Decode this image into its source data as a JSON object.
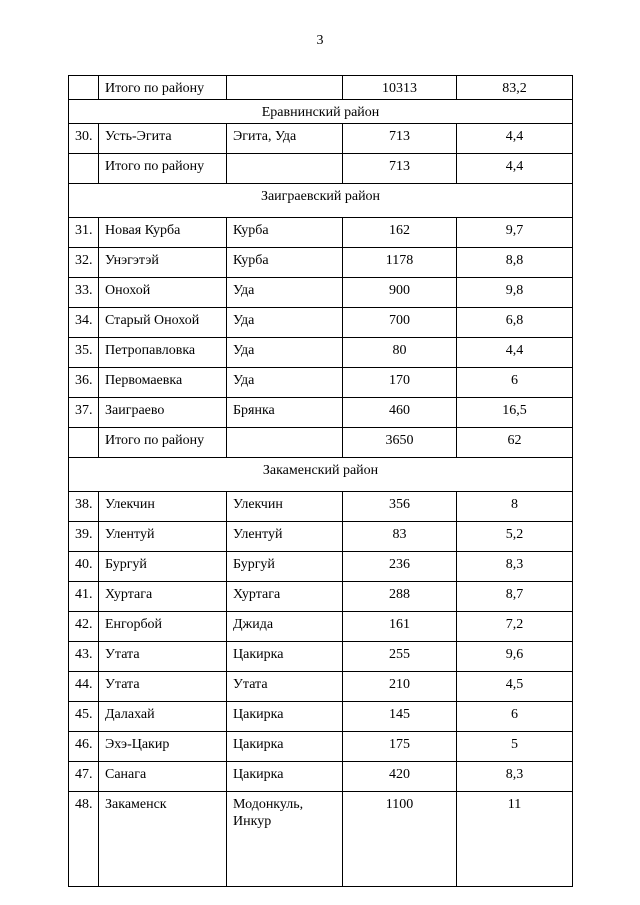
{
  "page": {
    "number": "3"
  },
  "table": {
    "rows": [
      {
        "type": "data",
        "size": "compact",
        "num": "",
        "name": "Итого по району",
        "river": "",
        "v1": "10313",
        "v2": "83,2"
      },
      {
        "type": "section",
        "size": "compact",
        "title": "Еравнинский район"
      },
      {
        "type": "data",
        "num": "30.",
        "name": "Усть-Эгита",
        "river": "Эгита, Уда",
        "v1": "713",
        "v2": "4,4"
      },
      {
        "type": "data",
        "num": "",
        "name": "Итого по району",
        "river": "",
        "v1": "713",
        "v2": "4,4"
      },
      {
        "type": "section",
        "size": "large",
        "title": "Заиграевский район"
      },
      {
        "type": "data",
        "num": "31.",
        "name": "Новая Курба",
        "river": "Курба",
        "v1": "162",
        "v2": "9,7"
      },
      {
        "type": "data",
        "num": "32.",
        "name": "Унэгэтэй",
        "river": "Курба",
        "v1": "1178",
        "v2": "8,8"
      },
      {
        "type": "data",
        "num": "33.",
        "name": "Онохой",
        "river": "Уда",
        "v1": "900",
        "v2": "9,8"
      },
      {
        "type": "data",
        "num": "34.",
        "name": "Старый Онохой",
        "river": "Уда",
        "v1": "700",
        "v2": "6,8"
      },
      {
        "type": "data",
        "num": "35.",
        "name": "Петропавловка",
        "river": "Уда",
        "v1": "80",
        "v2": "4,4"
      },
      {
        "type": "data",
        "num": "36.",
        "name": "Первомаевка",
        "river": "Уда",
        "v1": "170",
        "v2": "6"
      },
      {
        "type": "data",
        "num": "37.",
        "name": "Заиграево",
        "river": "Брянка",
        "v1": "460",
        "v2": "16,5"
      },
      {
        "type": "data",
        "num": "",
        "name": "Итого по району",
        "river": "",
        "v1": "3650",
        "v2": "62"
      },
      {
        "type": "section",
        "size": "large",
        "title": "Закаменский район"
      },
      {
        "type": "data",
        "num": "38.",
        "name": "Улекчин",
        "river": "Улекчин",
        "v1": "356",
        "v2": "8"
      },
      {
        "type": "data",
        "num": "39.",
        "name": "Улентуй",
        "river": "Улентуй",
        "v1": "83",
        "v2": "5,2"
      },
      {
        "type": "data",
        "num": "40.",
        "name": "Бургуй",
        "river": "Бургуй",
        "v1": "236",
        "v2": "8,3"
      },
      {
        "type": "data",
        "num": "41.",
        "name": "Хуртага",
        "river": "Хуртага",
        "v1": "288",
        "v2": "8,7"
      },
      {
        "type": "data",
        "num": "42.",
        "name": "Енгорбой",
        "river": "Джида",
        "v1": "161",
        "v2": "7,2"
      },
      {
        "type": "data",
        "num": "43.",
        "name": "Утата",
        "river": "Цакирка",
        "v1": "255",
        "v2": "9,6"
      },
      {
        "type": "data",
        "num": "44.",
        "name": "Утата",
        "river": "Утата",
        "v1": "210",
        "v2": "4,5"
      },
      {
        "type": "data",
        "num": "45.",
        "name": "Далахай",
        "river": "Цакирка",
        "v1": "145",
        "v2": "6"
      },
      {
        "type": "data",
        "num": "46.",
        "name": "Эхэ-Цакир",
        "river": "Цакирка",
        "v1": "175",
        "v2": "5"
      },
      {
        "type": "data",
        "num": "47.",
        "name": "Санага",
        "river": "Цакирка",
        "v1": "420",
        "v2": "8,3"
      },
      {
        "type": "data",
        "size": "tall",
        "num": "48.",
        "name": "Закаменск",
        "river": "Модонкуль,\nИнкур",
        "v1": "1100",
        "v2": "11"
      }
    ]
  }
}
